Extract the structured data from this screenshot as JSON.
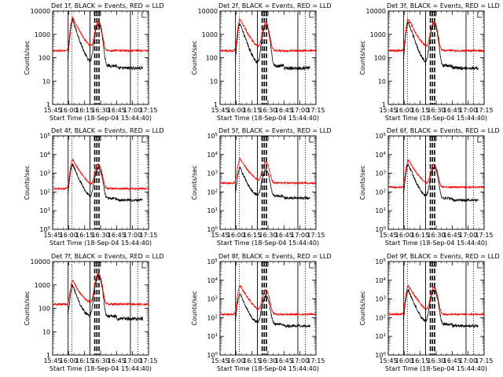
{
  "chart_data": [
    {
      "type": "line",
      "title": "Det 1f, BLACK = Events, RED = LLD",
      "ylabel": "Counts/sec",
      "xlabel": "Start Time (18-Sep-04 15:44:40)",
      "yscale": "log",
      "ylim": [
        1,
        10000
      ],
      "ytick_style": "plain",
      "yticks": [
        "1",
        "10",
        "100",
        "1000",
        "10000"
      ],
      "xticks": [
        "15:45",
        "16:00",
        "16:15",
        "16:30",
        "16:45",
        "17:00",
        "17:15"
      ],
      "peaks": [
        {
          "time": "16:04",
          "events": 4000,
          "lld": 5000
        },
        {
          "time": "16:28",
          "events": 3000,
          "lld": 3500
        }
      ],
      "baseline": {
        "events": 45,
        "lld": 200
      },
      "series": [
        {
          "color": "#000000"
        },
        {
          "color": "#ff0000"
        }
      ]
    },
    {
      "type": "line",
      "title": "Det 2f, BLACK = Events, RED = LLD",
      "ylabel": "Counts/sec",
      "xlabel": "Start Time (18-Sep-04 15:44:40)",
      "yscale": "log",
      "ylim": [
        1,
        10000
      ],
      "ytick_style": "plain",
      "yticks": [
        "1",
        "10",
        "100",
        "1000",
        "10000"
      ],
      "xticks": [
        "15:45",
        "16:00",
        "16:15",
        "16:30",
        "16:45",
        "17:00",
        "17:15"
      ],
      "peaks": [
        {
          "time": "16:04",
          "events": 3000,
          "lld": 4500
        },
        {
          "time": "16:28",
          "events": 2500,
          "lld": 3000
        }
      ],
      "baseline": {
        "events": 45,
        "lld": 200
      },
      "series": [
        {
          "color": "#000000"
        },
        {
          "color": "#ff0000"
        }
      ]
    },
    {
      "type": "line",
      "title": "Det 3f, BLACK = Events, RED = LLD",
      "ylabel": "Counts/sec",
      "xlabel": "Start Time (18-Sep-04 15:44:40)",
      "yscale": "log",
      "ylim": [
        1,
        10000
      ],
      "ytick_style": "plain",
      "yticks": [
        "1",
        "10",
        "100",
        "1000",
        "10000"
      ],
      "xticks": [
        "15:45",
        "16:00",
        "16:15",
        "16:30",
        "16:45",
        "17:00",
        "17:15"
      ],
      "peaks": [
        {
          "time": "16:04",
          "events": 3500,
          "lld": 4500
        },
        {
          "time": "16:28",
          "events": 3000,
          "lld": 3500
        }
      ],
      "baseline": {
        "events": 45,
        "lld": 200
      },
      "series": [
        {
          "color": "#000000"
        },
        {
          "color": "#ff0000"
        }
      ]
    },
    {
      "type": "line",
      "title": "Det 4f, BLACK = Events, RED = LLD",
      "ylabel": "Counts/sec",
      "xlabel": "Start Time (18-Sep-04 15:44:40)",
      "yscale": "log",
      "ylim": [
        1,
        100000
      ],
      "ytick_style": "power",
      "yticks": [
        "10^0",
        "10^1",
        "10^2",
        "10^3",
        "10^4",
        "10^5"
      ],
      "xticks": [
        "15:45",
        "16:00",
        "16:15",
        "16:30",
        "16:45",
        "17:00",
        "17:15"
      ],
      "peaks": [
        {
          "time": "16:04",
          "events": 3000,
          "lld": 5000
        },
        {
          "time": "16:28",
          "events": 2000,
          "lld": 3000
        }
      ],
      "baseline": {
        "events": 45,
        "lld": 150
      },
      "series": [
        {
          "color": "#000000"
        },
        {
          "color": "#ff0000"
        }
      ]
    },
    {
      "type": "line",
      "title": "Det 5f, BLACK = Events, RED = LLD",
      "ylabel": "Counts/sec",
      "xlabel": "Start Time (18-Sep-04 15:44:40)",
      "yscale": "log",
      "ylim": [
        1,
        100000
      ],
      "ytick_style": "power",
      "yticks": [
        "10^0",
        "10^1",
        "10^2",
        "10^3",
        "10^4",
        "10^5"
      ],
      "xticks": [
        "15:45",
        "16:00",
        "16:15",
        "16:30",
        "16:45",
        "17:00",
        "17:15"
      ],
      "peaks": [
        {
          "time": "16:04",
          "events": 2000,
          "lld": 6000
        },
        {
          "time": "16:28",
          "events": 1500,
          "lld": 4000
        }
      ],
      "baseline": {
        "events": 60,
        "lld": 300
      },
      "series": [
        {
          "color": "#000000"
        },
        {
          "color": "#ff0000"
        }
      ]
    },
    {
      "type": "line",
      "title": "Det 6f, BLACK = Events, RED = LLD",
      "ylabel": "Counts/sec",
      "xlabel": "Start Time (18-Sep-04 15:44:40)",
      "yscale": "log",
      "ylim": [
        1,
        100000
      ],
      "ytick_style": "power",
      "yticks": [
        "10^0",
        "10^1",
        "10^2",
        "10^3",
        "10^4",
        "10^5"
      ],
      "xticks": [
        "15:45",
        "16:00",
        "16:15",
        "16:30",
        "16:45",
        "17:00",
        "17:15"
      ],
      "peaks": [
        {
          "time": "16:04",
          "events": 3000,
          "lld": 5000
        },
        {
          "time": "16:28",
          "events": 2000,
          "lld": 3000
        }
      ],
      "baseline": {
        "events": 45,
        "lld": 180
      },
      "series": [
        {
          "color": "#000000"
        },
        {
          "color": "#ff0000"
        }
      ]
    },
    {
      "type": "line",
      "title": "Det 7f, BLACK = Events, RED = LLD",
      "ylabel": "Counts/sec",
      "xlabel": "Start Time (18-Sep-04 15:44:40)",
      "yscale": "log",
      "ylim": [
        1,
        10000
      ],
      "ytick_style": "plain",
      "yticks": [
        "1",
        "10",
        "100",
        "1000",
        "10000"
      ],
      "xticks": [
        "15:45",
        "16:00",
        "16:15",
        "16:30",
        "16:45",
        "17:00",
        "17:15"
      ],
      "peaks": [
        {
          "time": "16:04",
          "events": 1000,
          "lld": 1500
        },
        {
          "time": "16:28",
          "events": 2500,
          "lld": 3000
        }
      ],
      "baseline": {
        "events": 45,
        "lld": 150
      },
      "series": [
        {
          "color": "#000000"
        },
        {
          "color": "#ff0000"
        }
      ]
    },
    {
      "type": "line",
      "title": "Det 8f, BLACK = Events, RED = LLD",
      "ylabel": "Counts/sec",
      "xlabel": "Start Time (18-Sep-04 15:44:40)",
      "yscale": "log",
      "ylim": [
        1,
        100000
      ],
      "ytick_style": "power",
      "yticks": [
        "10^0",
        "10^1",
        "10^2",
        "10^3",
        "10^4",
        "10^5"
      ],
      "xticks": [
        "15:45",
        "16:00",
        "16:15",
        "16:30",
        "16:45",
        "17:00",
        "17:15"
      ],
      "peaks": [
        {
          "time": "16:04",
          "events": 2000,
          "lld": 5000
        },
        {
          "time": "16:28",
          "events": 1500,
          "lld": 3000
        }
      ],
      "baseline": {
        "events": 45,
        "lld": 150
      },
      "series": [
        {
          "color": "#000000"
        },
        {
          "color": "#ff0000"
        }
      ]
    },
    {
      "type": "line",
      "title": "Det 9f, BLACK = Events, RED = LLD",
      "ylabel": "Counts/sec",
      "xlabel": "Start Time (18-Sep-04 15:44:40)",
      "yscale": "log",
      "ylim": [
        1,
        100000
      ],
      "ytick_style": "power",
      "yticks": [
        "10^0",
        "10^1",
        "10^2",
        "10^3",
        "10^4",
        "10^5"
      ],
      "xticks": [
        "15:45",
        "16:00",
        "16:15",
        "16:30",
        "16:45",
        "17:00",
        "17:15"
      ],
      "peaks": [
        {
          "time": "16:04",
          "events": 3000,
          "lld": 5000
        },
        {
          "time": "16:28",
          "events": 3000,
          "lld": 4000
        }
      ],
      "baseline": {
        "events": 45,
        "lld": 150
      },
      "series": [
        {
          "color": "#000000"
        },
        {
          "color": "#ff0000"
        }
      ]
    }
  ]
}
